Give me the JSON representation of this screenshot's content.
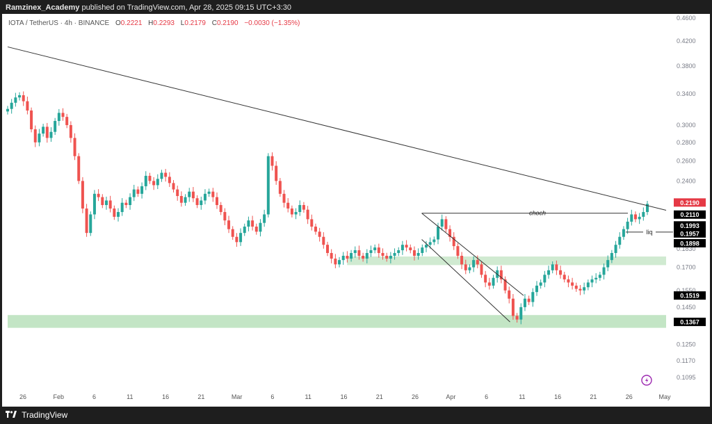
{
  "header": {
    "publisher": "Ramzinex_Academy",
    "published_text": "published on TradingView.com, Apr 28, 2025 09:15 UTC+3:30"
  },
  "footer": {
    "logo_icon": "tradingview-logo-icon",
    "brand": "TradingView"
  },
  "chart_data": {
    "type": "candlestick",
    "symbol_line": {
      "symbol": "IOTA / TetherUS · 4h · BINANCE",
      "open_label": "O",
      "open": "0.2221",
      "high_label": "H",
      "high": "0.2293",
      "low_label": "L",
      "low": "0.2179",
      "close_label": "C",
      "close": "0.2190",
      "change": "−0.0030 (−1.35%)"
    },
    "y_scale": "log",
    "ylim": [
      0.108,
      0.46
    ],
    "y_ticks": [
      "0.4600",
      "0.4200",
      "0.3800",
      "0.3400",
      "0.3000",
      "0.2800",
      "0.2600",
      "0.2400",
      "0.1830",
      "0.1700",
      "0.1550",
      "0.1450",
      "0.1250",
      "0.1170",
      "0.1095"
    ],
    "x_ticks": [
      "26",
      "Feb",
      "6",
      "11",
      "16",
      "21",
      "Mar",
      "6",
      "11",
      "16",
      "21",
      "26",
      "Apr",
      "6",
      "11",
      "16",
      "21",
      "26",
      "May"
    ],
    "price_labels": [
      {
        "text": "0.2190",
        "color": "#e53945",
        "value": 0.219
      },
      {
        "text": "0.2110",
        "color": "#000000",
        "value": 0.211
      },
      {
        "text": "0.1993",
        "color": "#000000",
        "value": 0.1993
      },
      {
        "text": "0.1957",
        "color": "#000000",
        "value": 0.1957
      },
      {
        "text": "0.1898",
        "color": "#000000",
        "value": 0.1898
      },
      {
        "text": "0.1519",
        "color": "#000000",
        "value": 0.1519
      },
      {
        "text": "0.1367",
        "color": "#000000",
        "value": 0.1367
      }
    ],
    "annotations": [
      {
        "text": "choch",
        "level": 0.211
      },
      {
        "text": "liq",
        "level": 0.1957
      }
    ],
    "zones": [
      {
        "from": "Mar 15",
        "to": "May",
        "low": 0.1715,
        "high": 0.1775,
        "color": "#c8e6c9"
      },
      {
        "from": "Jan 24",
        "to": "May",
        "low": 0.1335,
        "high": 0.1405,
        "color": "#b9e0bb"
      }
    ],
    "trendline": {
      "from": [
        "Jan 24",
        0.41
      ],
      "to": [
        "May",
        0.2135
      ]
    },
    "channel": {
      "upper": [
        [
          "Mar 26",
          0.211
        ],
        [
          "Apr 10",
          0.1519
        ]
      ],
      "lower": [
        [
          "Mar 26",
          0.19
        ],
        [
          "Apr 8",
          0.1367
        ]
      ]
    },
    "colors": {
      "up": "#26a69a",
      "down": "#ef5350",
      "zone": "#c8e6c9"
    },
    "candles": [
      0.32,
      0.328,
      0.335,
      0.338,
      0.33,
      0.318,
      0.295,
      0.28,
      0.29,
      0.298,
      0.285,
      0.292,
      0.305,
      0.315,
      0.31,
      0.3,
      0.285,
      0.265,
      0.24,
      0.215,
      0.195,
      0.21,
      0.228,
      0.225,
      0.218,
      0.222,
      0.215,
      0.208,
      0.212,
      0.22,
      0.218,
      0.225,
      0.232,
      0.228,
      0.235,
      0.245,
      0.24,
      0.236,
      0.242,
      0.248,
      0.244,
      0.238,
      0.232,
      0.226,
      0.22,
      0.225,
      0.23,
      0.224,
      0.218,
      0.222,
      0.228,
      0.23,
      0.225,
      0.218,
      0.212,
      0.205,
      0.198,
      0.192,
      0.188,
      0.195,
      0.2,
      0.205,
      0.2,
      0.196,
      0.203,
      0.21,
      0.265,
      0.255,
      0.24,
      0.228,
      0.22,
      0.215,
      0.21,
      0.212,
      0.218,
      0.214,
      0.206,
      0.2,
      0.196,
      0.192,
      0.186,
      0.18,
      0.176,
      0.172,
      0.175,
      0.178,
      0.176,
      0.18,
      0.182,
      0.178,
      0.176,
      0.18,
      0.182,
      0.184,
      0.18,
      0.178,
      0.176,
      0.178,
      0.18,
      0.182,
      0.186,
      0.184,
      0.182,
      0.178,
      0.18,
      0.184,
      0.186,
      0.188,
      0.19,
      0.2,
      0.206,
      0.198,
      0.192,
      0.185,
      0.178,
      0.172,
      0.168,
      0.17,
      0.175,
      0.172,
      0.165,
      0.16,
      0.158,
      0.163,
      0.168,
      0.162,
      0.155,
      0.15,
      0.14,
      0.138,
      0.145,
      0.15,
      0.148,
      0.154,
      0.158,
      0.16,
      0.165,
      0.168,
      0.172,
      0.168,
      0.165,
      0.162,
      0.16,
      0.158,
      0.156,
      0.155,
      0.157,
      0.16,
      0.162,
      0.163,
      0.165,
      0.17,
      0.175,
      0.18,
      0.186,
      0.192,
      0.198,
      0.204,
      0.21,
      0.206,
      0.208,
      0.212,
      0.219
    ]
  }
}
